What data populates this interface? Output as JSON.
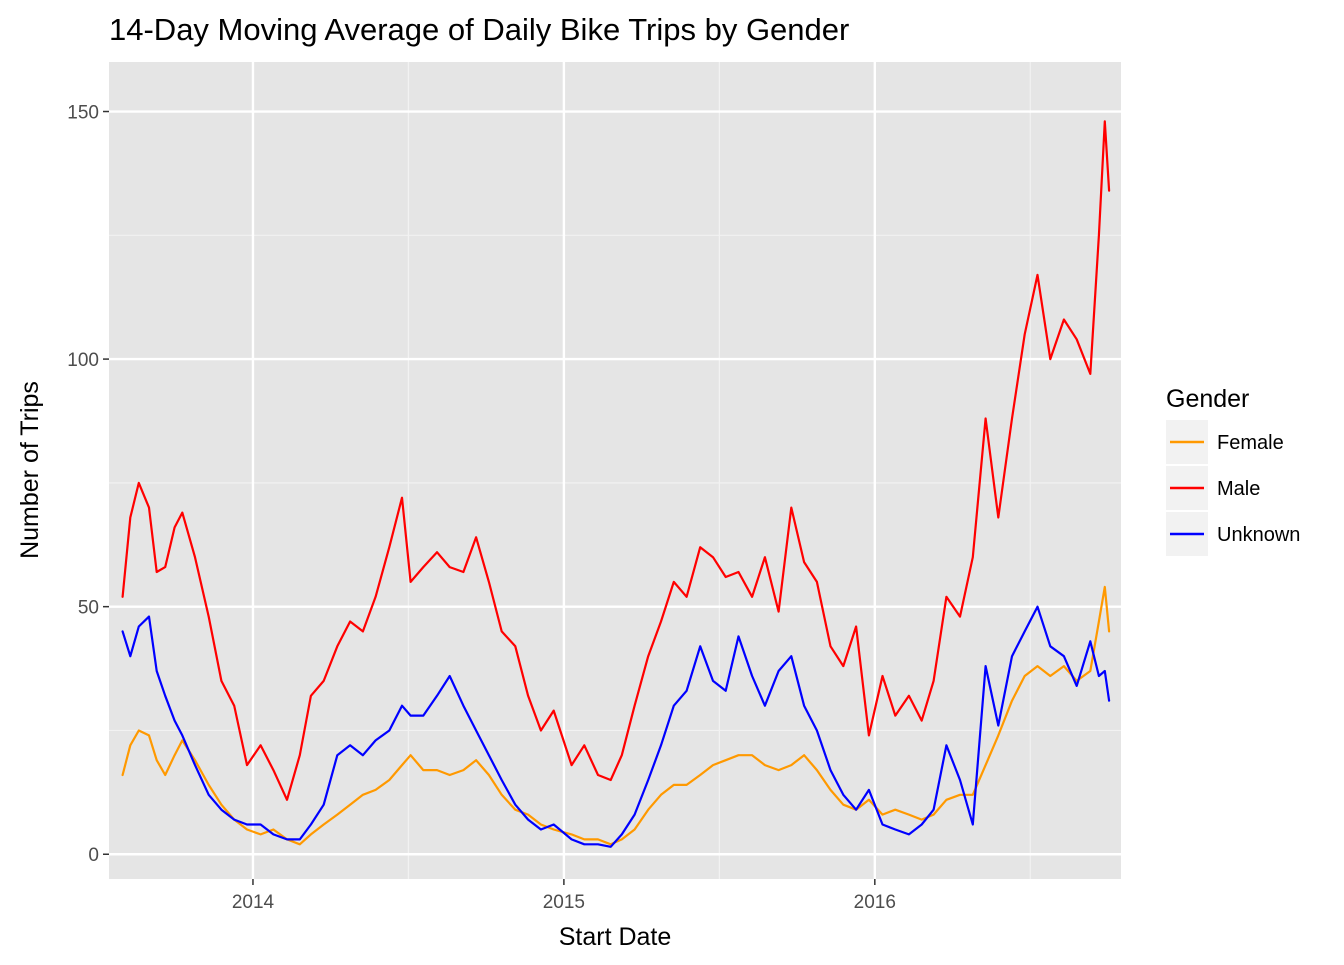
{
  "chart_data": {
    "type": "line",
    "title": "14-Day Moving Average of Daily Bike Trips by Gender",
    "xlabel": "Start Date",
    "ylabel": "Number of Trips",
    "xlim": [
      "2013-07-16",
      "2016-10-16"
    ],
    "ylim": [
      -5,
      160
    ],
    "x_ticks": [
      "2014-01-01",
      "2015-01-01",
      "2016-01-01"
    ],
    "x_tick_labels": [
      "2014",
      "2015",
      "2016"
    ],
    "y_ticks": [
      0,
      50,
      100,
      150
    ],
    "y_tick_labels": [
      "0",
      "50",
      "100",
      "150"
    ],
    "grid": true,
    "legend": {
      "title": "Gender",
      "position": "right"
    },
    "series": [
      {
        "name": "Female",
        "color": "#FF9900",
        "points": [
          [
            "2013-08-01",
            16
          ],
          [
            "2013-08-10",
            22
          ],
          [
            "2013-08-20",
            25
          ],
          [
            "2013-09-01",
            24
          ],
          [
            "2013-09-10",
            19
          ],
          [
            "2013-09-20",
            16
          ],
          [
            "2013-10-01",
            20
          ],
          [
            "2013-10-10",
            23
          ],
          [
            "2013-10-25",
            19
          ],
          [
            "2013-11-10",
            14
          ],
          [
            "2013-11-25",
            10
          ],
          [
            "2013-12-10",
            7
          ],
          [
            "2013-12-25",
            5
          ],
          [
            "2014-01-10",
            4
          ],
          [
            "2014-01-25",
            5
          ],
          [
            "2014-02-10",
            3
          ],
          [
            "2014-02-25",
            2
          ],
          [
            "2014-03-10",
            4
          ],
          [
            "2014-03-25",
            6
          ],
          [
            "2014-04-10",
            8
          ],
          [
            "2014-04-25",
            10
          ],
          [
            "2014-05-10",
            12
          ],
          [
            "2014-05-25",
            13
          ],
          [
            "2014-06-10",
            15
          ],
          [
            "2014-06-25",
            18
          ],
          [
            "2014-07-05",
            20
          ],
          [
            "2014-07-20",
            17
          ],
          [
            "2014-08-05",
            17
          ],
          [
            "2014-08-20",
            16
          ],
          [
            "2014-09-05",
            17
          ],
          [
            "2014-09-20",
            19
          ],
          [
            "2014-10-05",
            16
          ],
          [
            "2014-10-20",
            12
          ],
          [
            "2014-11-05",
            9
          ],
          [
            "2014-11-20",
            8
          ],
          [
            "2014-12-05",
            6
          ],
          [
            "2014-12-20",
            5
          ],
          [
            "2015-01-10",
            4
          ],
          [
            "2015-01-25",
            3
          ],
          [
            "2015-02-10",
            3
          ],
          [
            "2015-02-25",
            2
          ],
          [
            "2015-03-10",
            3
          ],
          [
            "2015-03-25",
            5
          ],
          [
            "2015-04-10",
            9
          ],
          [
            "2015-04-25",
            12
          ],
          [
            "2015-05-10",
            14
          ],
          [
            "2015-05-25",
            14
          ],
          [
            "2015-06-10",
            16
          ],
          [
            "2015-06-25",
            18
          ],
          [
            "2015-07-10",
            19
          ],
          [
            "2015-07-25",
            20
          ],
          [
            "2015-08-10",
            20
          ],
          [
            "2015-08-25",
            18
          ],
          [
            "2015-09-10",
            17
          ],
          [
            "2015-09-25",
            18
          ],
          [
            "2015-10-10",
            20
          ],
          [
            "2015-10-25",
            17
          ],
          [
            "2015-11-10",
            13
          ],
          [
            "2015-11-25",
            10
          ],
          [
            "2015-12-10",
            9
          ],
          [
            "2015-12-25",
            11
          ],
          [
            "2016-01-10",
            8
          ],
          [
            "2016-01-25",
            9
          ],
          [
            "2016-02-10",
            8
          ],
          [
            "2016-02-25",
            7
          ],
          [
            "2016-03-10",
            8
          ],
          [
            "2016-03-25",
            11
          ],
          [
            "2016-04-10",
            12
          ],
          [
            "2016-04-25",
            12
          ],
          [
            "2016-05-10",
            18
          ],
          [
            "2016-05-25",
            24
          ],
          [
            "2016-06-10",
            31
          ],
          [
            "2016-06-25",
            36
          ],
          [
            "2016-07-10",
            38
          ],
          [
            "2016-07-25",
            36
          ],
          [
            "2016-08-10",
            38
          ],
          [
            "2016-08-25",
            35
          ],
          [
            "2016-09-10",
            37
          ],
          [
            "2016-09-20",
            47
          ],
          [
            "2016-09-27",
            54
          ],
          [
            "2016-10-02",
            45
          ]
        ]
      },
      {
        "name": "Male",
        "color": "#FF0000",
        "points": [
          [
            "2013-08-01",
            52
          ],
          [
            "2013-08-10",
            68
          ],
          [
            "2013-08-20",
            75
          ],
          [
            "2013-09-01",
            70
          ],
          [
            "2013-09-10",
            57
          ],
          [
            "2013-09-20",
            58
          ],
          [
            "2013-10-01",
            66
          ],
          [
            "2013-10-10",
            69
          ],
          [
            "2013-10-25",
            60
          ],
          [
            "2013-11-10",
            48
          ],
          [
            "2013-11-25",
            35
          ],
          [
            "2013-12-10",
            30
          ],
          [
            "2013-12-25",
            18
          ],
          [
            "2014-01-10",
            22
          ],
          [
            "2014-01-25",
            17
          ],
          [
            "2014-02-10",
            11
          ],
          [
            "2014-02-25",
            20
          ],
          [
            "2014-03-10",
            32
          ],
          [
            "2014-03-25",
            35
          ],
          [
            "2014-04-10",
            42
          ],
          [
            "2014-04-25",
            47
          ],
          [
            "2014-05-10",
            45
          ],
          [
            "2014-05-25",
            52
          ],
          [
            "2014-06-10",
            62
          ],
          [
            "2014-06-25",
            72
          ],
          [
            "2014-07-05",
            55
          ],
          [
            "2014-07-20",
            58
          ],
          [
            "2014-08-05",
            61
          ],
          [
            "2014-08-20",
            58
          ],
          [
            "2014-09-05",
            57
          ],
          [
            "2014-09-20",
            64
          ],
          [
            "2014-10-05",
            55
          ],
          [
            "2014-10-20",
            45
          ],
          [
            "2014-11-05",
            42
          ],
          [
            "2014-11-20",
            32
          ],
          [
            "2014-12-05",
            25
          ],
          [
            "2014-12-20",
            29
          ],
          [
            "2015-01-10",
            18
          ],
          [
            "2015-01-25",
            22
          ],
          [
            "2015-02-10",
            16
          ],
          [
            "2015-02-25",
            15
          ],
          [
            "2015-03-10",
            20
          ],
          [
            "2015-03-25",
            30
          ],
          [
            "2015-04-10",
            40
          ],
          [
            "2015-04-25",
            47
          ],
          [
            "2015-05-10",
            55
          ],
          [
            "2015-05-25",
            52
          ],
          [
            "2015-06-10",
            62
          ],
          [
            "2015-06-25",
            60
          ],
          [
            "2015-07-10",
            56
          ],
          [
            "2015-07-25",
            57
          ],
          [
            "2015-08-10",
            52
          ],
          [
            "2015-08-25",
            60
          ],
          [
            "2015-09-10",
            49
          ],
          [
            "2015-09-25",
            70
          ],
          [
            "2015-10-10",
            59
          ],
          [
            "2015-10-25",
            55
          ],
          [
            "2015-11-10",
            42
          ],
          [
            "2015-11-25",
            38
          ],
          [
            "2015-12-10",
            46
          ],
          [
            "2015-12-25",
            24
          ],
          [
            "2016-01-10",
            36
          ],
          [
            "2016-01-25",
            28
          ],
          [
            "2016-02-10",
            32
          ],
          [
            "2016-02-25",
            27
          ],
          [
            "2016-03-10",
            35
          ],
          [
            "2016-03-25",
            52
          ],
          [
            "2016-04-10",
            48
          ],
          [
            "2016-04-25",
            60
          ],
          [
            "2016-05-10",
            88
          ],
          [
            "2016-05-25",
            68
          ],
          [
            "2016-06-10",
            88
          ],
          [
            "2016-06-25",
            105
          ],
          [
            "2016-07-10",
            117
          ],
          [
            "2016-07-25",
            100
          ],
          [
            "2016-08-10",
            108
          ],
          [
            "2016-08-25",
            104
          ],
          [
            "2016-09-10",
            97
          ],
          [
            "2016-09-20",
            125
          ],
          [
            "2016-09-27",
            148
          ],
          [
            "2016-10-02",
            134
          ]
        ]
      },
      {
        "name": "Unknown",
        "color": "#0000FF",
        "points": [
          [
            "2013-08-01",
            45
          ],
          [
            "2013-08-10",
            40
          ],
          [
            "2013-08-20",
            46
          ],
          [
            "2013-09-01",
            48
          ],
          [
            "2013-09-10",
            37
          ],
          [
            "2013-09-20",
            32
          ],
          [
            "2013-10-01",
            27
          ],
          [
            "2013-10-10",
            24
          ],
          [
            "2013-10-25",
            18
          ],
          [
            "2013-11-10",
            12
          ],
          [
            "2013-11-25",
            9
          ],
          [
            "2013-12-10",
            7
          ],
          [
            "2013-12-25",
            6
          ],
          [
            "2014-01-10",
            6
          ],
          [
            "2014-01-25",
            4
          ],
          [
            "2014-02-10",
            3
          ],
          [
            "2014-02-25",
            3
          ],
          [
            "2014-03-10",
            6
          ],
          [
            "2014-03-25",
            10
          ],
          [
            "2014-04-10",
            20
          ],
          [
            "2014-04-25",
            22
          ],
          [
            "2014-05-10",
            20
          ],
          [
            "2014-05-25",
            23
          ],
          [
            "2014-06-10",
            25
          ],
          [
            "2014-06-25",
            30
          ],
          [
            "2014-07-05",
            28
          ],
          [
            "2014-07-20",
            28
          ],
          [
            "2014-08-05",
            32
          ],
          [
            "2014-08-20",
            36
          ],
          [
            "2014-09-05",
            30
          ],
          [
            "2014-09-20",
            25
          ],
          [
            "2014-10-05",
            20
          ],
          [
            "2014-10-20",
            15
          ],
          [
            "2014-11-05",
            10
          ],
          [
            "2014-11-20",
            7
          ],
          [
            "2014-12-05",
            5
          ],
          [
            "2014-12-20",
            6
          ],
          [
            "2015-01-10",
            3
          ],
          [
            "2015-01-25",
            2
          ],
          [
            "2015-02-10",
            2
          ],
          [
            "2015-02-25",
            1.5
          ],
          [
            "2015-03-10",
            4
          ],
          [
            "2015-03-25",
            8
          ],
          [
            "2015-04-10",
            15
          ],
          [
            "2015-04-25",
            22
          ],
          [
            "2015-05-10",
            30
          ],
          [
            "2015-05-25",
            33
          ],
          [
            "2015-06-10",
            42
          ],
          [
            "2015-06-25",
            35
          ],
          [
            "2015-07-10",
            33
          ],
          [
            "2015-07-25",
            44
          ],
          [
            "2015-08-10",
            36
          ],
          [
            "2015-08-25",
            30
          ],
          [
            "2015-09-10",
            37
          ],
          [
            "2015-09-25",
            40
          ],
          [
            "2015-10-10",
            30
          ],
          [
            "2015-10-25",
            25
          ],
          [
            "2015-11-10",
            17
          ],
          [
            "2015-11-25",
            12
          ],
          [
            "2015-12-10",
            9
          ],
          [
            "2015-12-25",
            13
          ],
          [
            "2016-01-10",
            6
          ],
          [
            "2016-01-25",
            5
          ],
          [
            "2016-02-10",
            4
          ],
          [
            "2016-02-25",
            6
          ],
          [
            "2016-03-10",
            9
          ],
          [
            "2016-03-25",
            22
          ],
          [
            "2016-04-10",
            15
          ],
          [
            "2016-04-25",
            6
          ],
          [
            "2016-05-10",
            38
          ],
          [
            "2016-05-25",
            26
          ],
          [
            "2016-06-10",
            40
          ],
          [
            "2016-06-25",
            45
          ],
          [
            "2016-07-10",
            50
          ],
          [
            "2016-07-25",
            42
          ],
          [
            "2016-08-10",
            40
          ],
          [
            "2016-08-25",
            34
          ],
          [
            "2016-09-10",
            43
          ],
          [
            "2016-09-20",
            36
          ],
          [
            "2016-09-27",
            37
          ],
          [
            "2016-10-02",
            31
          ]
        ]
      }
    ]
  }
}
